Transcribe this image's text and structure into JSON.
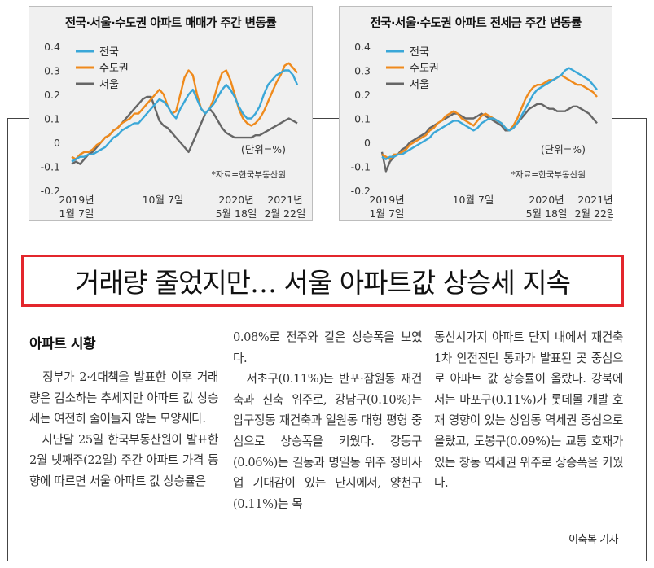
{
  "charts": [
    {
      "title": "전국·서울·수도권 아파트 매매가 주간 변동률",
      "unit": "(단위=%)",
      "source": "*자료=한국부동산원",
      "x_ticks": [
        {
          "line1": "2019년",
          "line2": "1월 7일"
        },
        {
          "line1": "10월 7일",
          "line2": ""
        },
        {
          "line1": "2020년",
          "line2": "5월 18일"
        },
        {
          "line1": "2021년",
          "line2": "2월 22일"
        }
      ]
    },
    {
      "title": "전국·서울·수도권 아파트 전세금 주간 변동률",
      "unit": "(단위=%)",
      "source": "*자료=한국부동산원",
      "x_ticks": [
        {
          "line1": "2019년",
          "line2": "1월 7일"
        },
        {
          "line1": "10월 7일",
          "line2": ""
        },
        {
          "line1": "2020년",
          "line2": "5월 18일"
        },
        {
          "line1": "2021년",
          "line2": "2월 22일"
        }
      ]
    }
  ],
  "chart_data": [
    {
      "type": "line",
      "title": "전국·서울·수도권 아파트 매매가 주간 변동률",
      "ylabel": "(단위=%)",
      "ylim": [
        -0.2,
        0.4
      ],
      "yticks": [
        "0.4",
        "0.3",
        "0.2",
        "0.1",
        "0",
        "-0.1",
        "-0.2"
      ],
      "colors": {
        "전국": "#3aa7d8",
        "수도권": "#ef8a1c",
        "서울": "#666666"
      },
      "series": [
        {
          "name": "전국",
          "values": [
            -0.08,
            -0.07,
            -0.06,
            -0.06,
            -0.05,
            -0.05,
            -0.04,
            -0.03,
            -0.02,
            0.0,
            0.02,
            0.03,
            0.05,
            0.06,
            0.07,
            0.08,
            0.08,
            0.1,
            0.12,
            0.14,
            0.16,
            0.18,
            0.17,
            0.15,
            0.12,
            0.1,
            0.14,
            0.17,
            0.2,
            0.22,
            0.18,
            0.14,
            0.12,
            0.14,
            0.16,
            0.19,
            0.22,
            0.24,
            0.22,
            0.19,
            0.15,
            0.12,
            0.1,
            0.1,
            0.12,
            0.15,
            0.2,
            0.24,
            0.26,
            0.28,
            0.29,
            0.3,
            0.3,
            0.28,
            0.24
          ]
        },
        {
          "name": "수도권",
          "values": [
            -0.06,
            -0.07,
            -0.05,
            -0.04,
            -0.04,
            -0.03,
            -0.01,
            0.0,
            0.02,
            0.03,
            0.05,
            0.06,
            0.08,
            0.09,
            0.1,
            0.12,
            0.12,
            0.14,
            0.16,
            0.18,
            0.2,
            0.22,
            0.2,
            0.15,
            0.12,
            0.13,
            0.2,
            0.27,
            0.3,
            0.28,
            0.2,
            0.14,
            0.12,
            0.14,
            0.18,
            0.24,
            0.29,
            0.3,
            0.26,
            0.2,
            0.14,
            0.1,
            0.08,
            0.07,
            0.08,
            0.1,
            0.13,
            0.17,
            0.21,
            0.25,
            0.28,
            0.32,
            0.33,
            0.31,
            0.29
          ]
        },
        {
          "name": "서울",
          "values": [
            -0.09,
            -0.08,
            -0.09,
            -0.07,
            -0.05,
            -0.04,
            -0.02,
            0.0,
            0.02,
            0.03,
            0.05,
            0.06,
            0.08,
            0.1,
            0.12,
            0.14,
            0.16,
            0.18,
            0.19,
            0.19,
            0.14,
            0.09,
            0.07,
            0.06,
            0.04,
            0.02,
            0.0,
            -0.02,
            -0.04,
            0.0,
            0.04,
            0.08,
            0.12,
            0.14,
            0.12,
            0.09,
            0.06,
            0.04,
            0.03,
            0.02,
            0.02,
            0.02,
            0.02,
            0.02,
            0.03,
            0.03,
            0.04,
            0.05,
            0.06,
            0.07,
            0.08,
            0.09,
            0.1,
            0.09,
            0.08
          ]
        }
      ]
    },
    {
      "type": "line",
      "title": "전국·서울·수도권 아파트 전세금 주간 변동률",
      "ylabel": "(단위=%)",
      "ylim": [
        -0.2,
        0.4
      ],
      "yticks": [
        "0.4",
        "0.3",
        "0.2",
        "0.1",
        "0",
        "-0.1",
        "-0.2"
      ],
      "colors": {
        "전국": "#3aa7d8",
        "수도권": "#ef8a1c",
        "서울": "#666666"
      },
      "series": [
        {
          "name": "전국",
          "values": [
            -0.06,
            -0.07,
            -0.06,
            -0.06,
            -0.05,
            -0.05,
            -0.04,
            -0.03,
            -0.02,
            -0.01,
            0.0,
            0.01,
            0.02,
            0.04,
            0.05,
            0.06,
            0.07,
            0.08,
            0.09,
            0.09,
            0.08,
            0.07,
            0.06,
            0.05,
            0.06,
            0.08,
            0.09,
            0.1,
            0.1,
            0.09,
            0.08,
            0.06,
            0.05,
            0.06,
            0.08,
            0.11,
            0.14,
            0.17,
            0.2,
            0.22,
            0.23,
            0.24,
            0.25,
            0.26,
            0.27,
            0.28,
            0.3,
            0.31,
            0.3,
            0.29,
            0.28,
            0.27,
            0.26,
            0.24,
            0.22
          ]
        },
        {
          "name": "수도권",
          "values": [
            -0.05,
            -0.06,
            -0.07,
            -0.05,
            -0.05,
            -0.04,
            -0.03,
            -0.01,
            0.0,
            0.01,
            0.02,
            0.03,
            0.05,
            0.06,
            0.08,
            0.09,
            0.11,
            0.12,
            0.13,
            0.12,
            0.1,
            0.09,
            0.08,
            0.07,
            0.09,
            0.11,
            0.12,
            0.11,
            0.1,
            0.09,
            0.08,
            0.06,
            0.05,
            0.07,
            0.1,
            0.14,
            0.18,
            0.21,
            0.23,
            0.24,
            0.24,
            0.25,
            0.26,
            0.26,
            0.27,
            0.28,
            0.27,
            0.26,
            0.25,
            0.24,
            0.24,
            0.23,
            0.22,
            0.21,
            0.19
          ]
        },
        {
          "name": "서울",
          "values": [
            -0.04,
            -0.12,
            -0.08,
            -0.06,
            -0.05,
            -0.03,
            -0.02,
            0.0,
            0.01,
            0.02,
            0.03,
            0.04,
            0.06,
            0.07,
            0.08,
            0.09,
            0.1,
            0.11,
            0.12,
            0.12,
            0.11,
            0.1,
            0.1,
            0.1,
            0.11,
            0.12,
            0.11,
            0.1,
            0.09,
            0.08,
            0.07,
            0.05,
            0.05,
            0.06,
            0.08,
            0.1,
            0.12,
            0.14,
            0.15,
            0.16,
            0.16,
            0.15,
            0.14,
            0.14,
            0.13,
            0.13,
            0.13,
            0.14,
            0.15,
            0.15,
            0.14,
            0.13,
            0.12,
            0.1,
            0.08
          ]
        }
      ]
    }
  ],
  "headline": "거래량 줄었지만… 서울 아파트값 상승세 지속",
  "article": {
    "section": "아파트 시황",
    "columns": [
      "　정부가 2·4대책을 발표한 이후 거래량은 감소하는 추세지만 아파트 값 상승세는 여전히 줄어들지 않는 모양새다.\n　지난달 25일 한국부동산원이 발표한 2월 넷째주(22일) 주간 아파트 가격 동향에 따르면 서울 아파트 값 상승률은",
      "0.08%로 전주와 같은 상승폭을 보였다.\n　서초구(0.11%)는 반포·잠원동 재건축과 신축 위주로, 강남구(0.10%)는 압구정동 재건축과 일원동 대형 평형 중심으로 상승폭을 키웠다. 강동구(0.06%)는 길동과 명일동 위주 정비사업 기대감이 있는 단지에서, 양천구(0.11%)는 목",
      "동신시가지 아파트 단지 내에서 재건축 1차 안전진단 통과가 발표된 곳 중심으로 아파트 값 상승률이 올랐다. 강북에서는 마포구(0.11%)가 롯데몰 개발 호재 영향이 있는 상암동 역세권 중심으로 올랐고, 도봉구(0.09%)는 교통 호재가 있는 창동 역세권 위주로 상승폭을 키웠다."
    ],
    "byline": "이축복 기자"
  }
}
